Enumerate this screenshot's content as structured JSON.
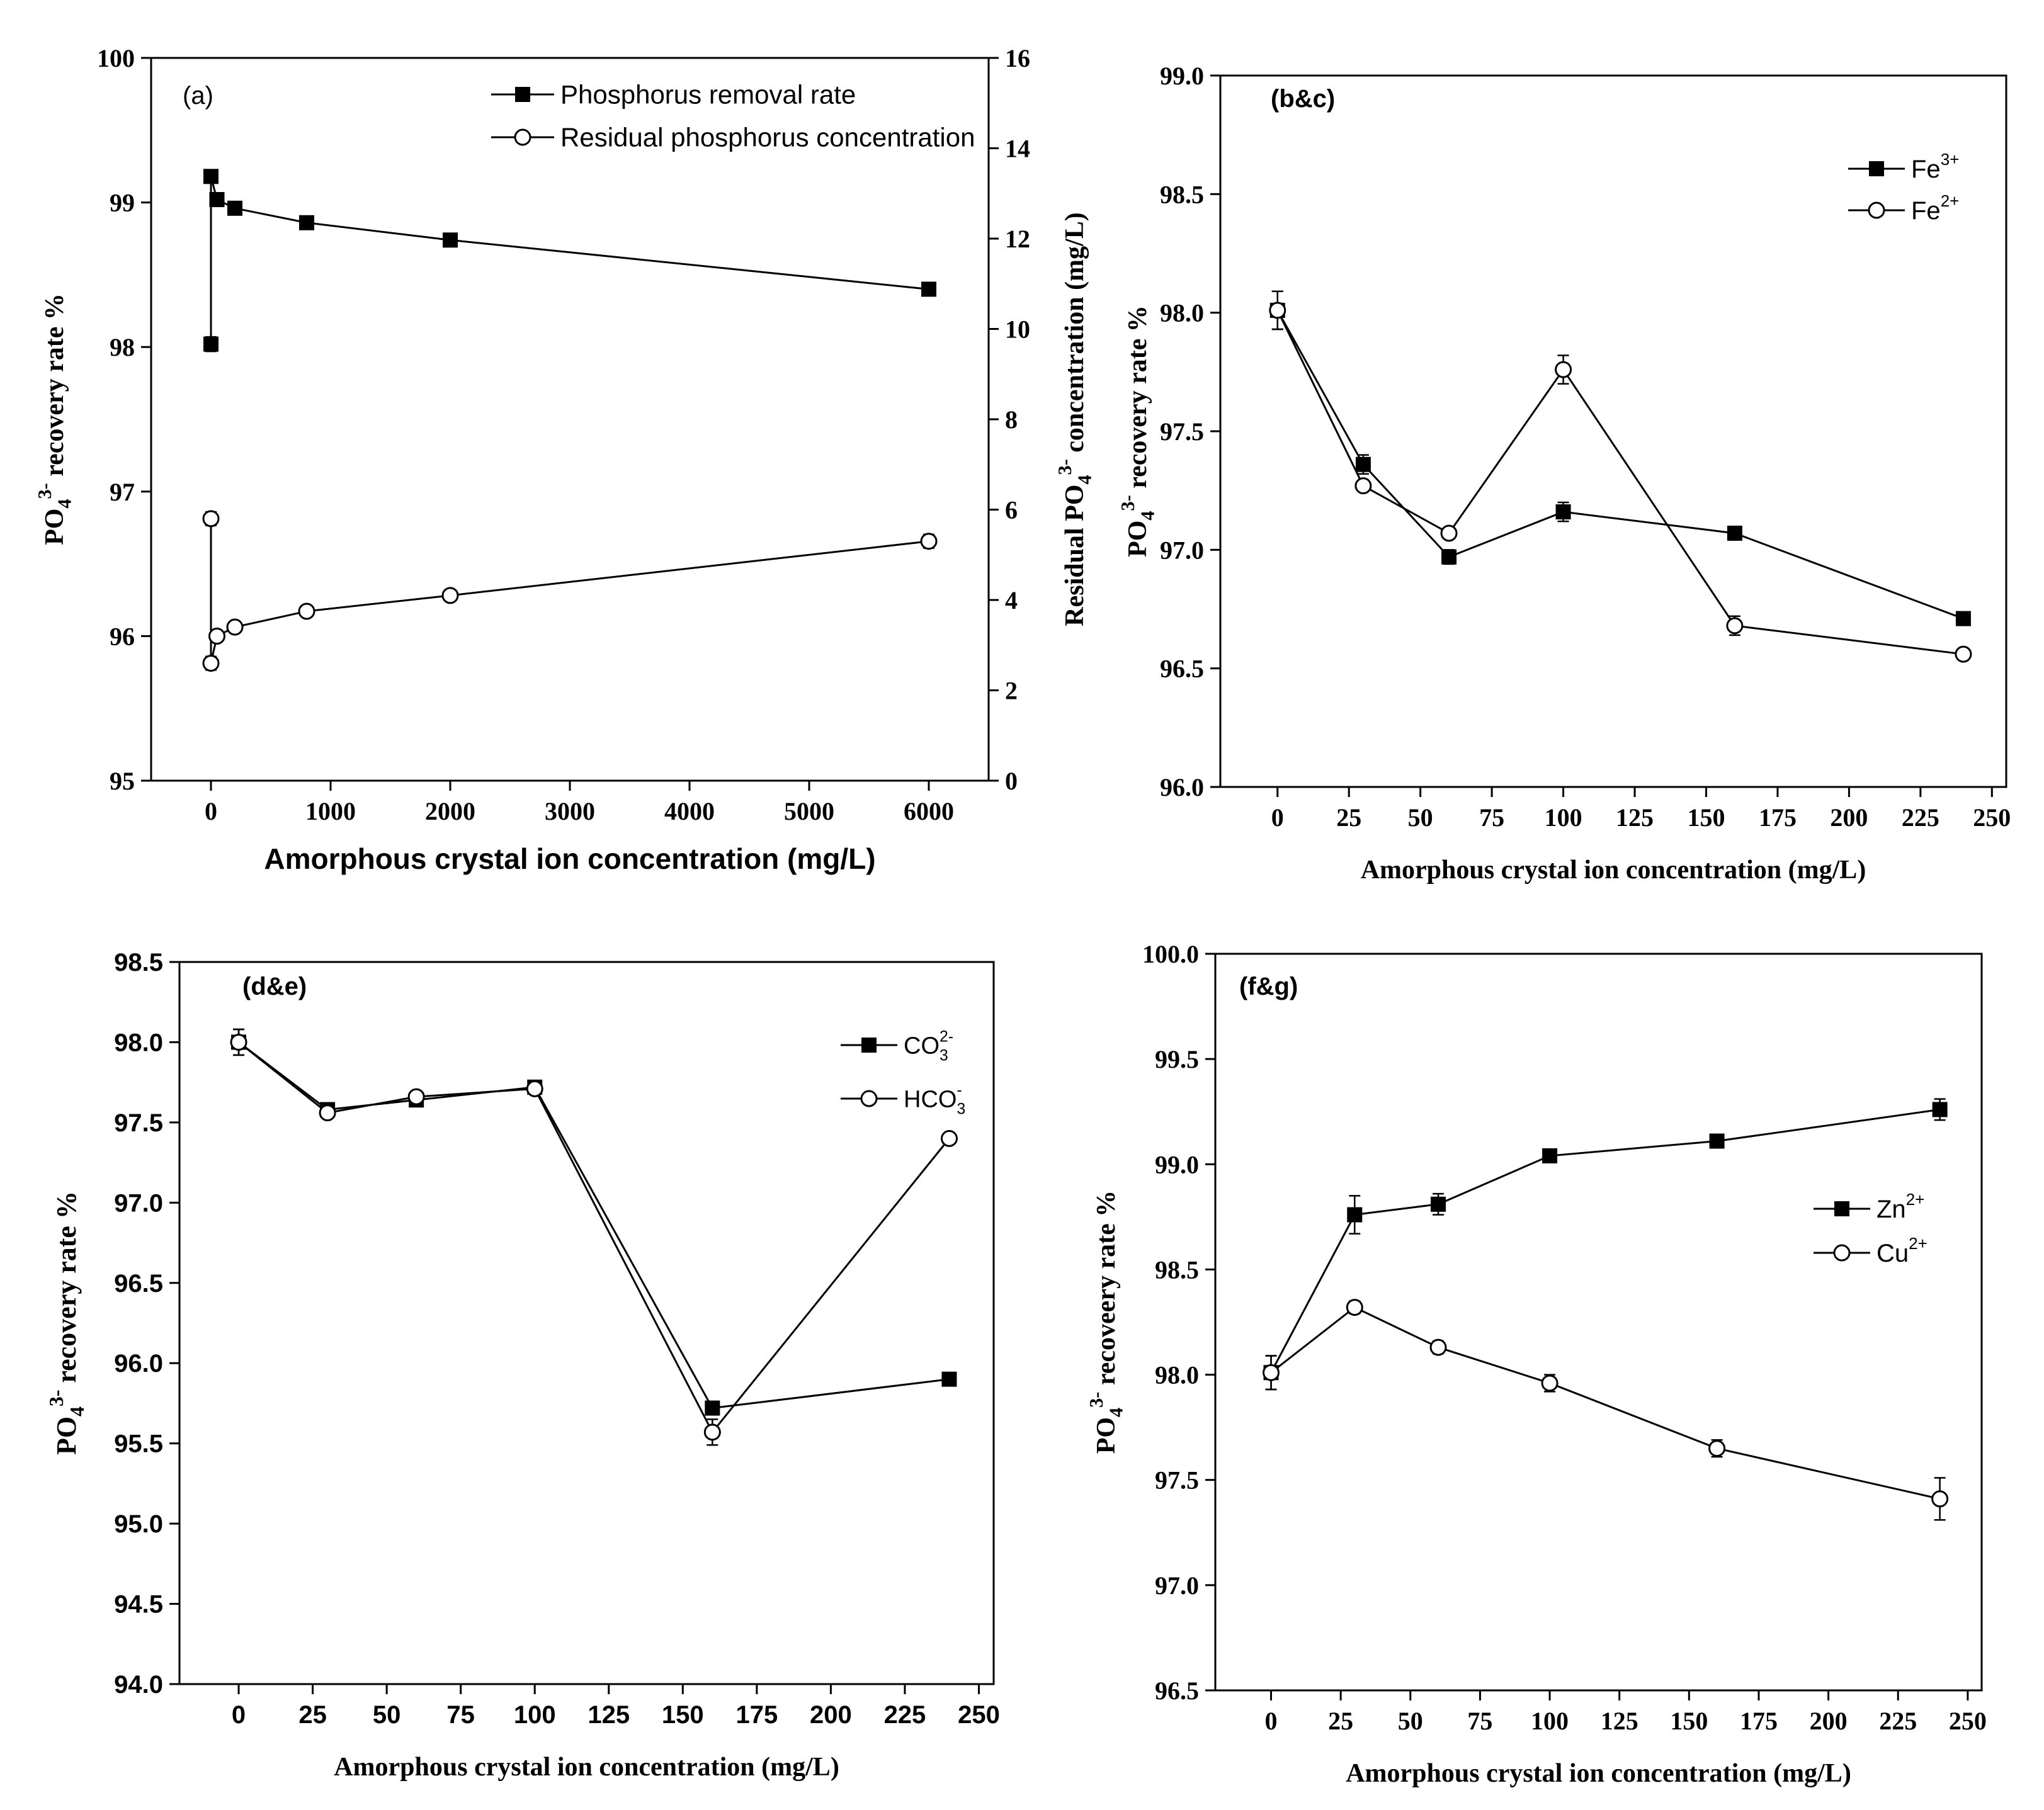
{
  "chart_data": [
    {
      "type": "line",
      "panel_label": "(a)",
      "xlabel": "Amorphous crystal ion concentration (mg/L)",
      "ylabel": "PO4 3- recovery rate %",
      "ylabel_parts": {
        "base": "PO",
        "sub": "4",
        "sup": "3-",
        "rest": " recovery rate %"
      },
      "y2label": "Residual PO4 3- concentration (mg/L)",
      "y2label_parts": {
        "pre": "Residual PO",
        "sub": "4",
        "sup": "3-",
        "rest": " concentration (mg/L)"
      },
      "xlim": [
        -500,
        6500
      ],
      "ylim": [
        95,
        100
      ],
      "y2lim": [
        0,
        16
      ],
      "xticks": [
        0,
        1000,
        2000,
        3000,
        4000,
        5000,
        6000
      ],
      "xtick_labels": [
        "0",
        "1000",
        "2000",
        "3000",
        "4000",
        "5000",
        "6000"
      ],
      "yticks": [
        95,
        96,
        97,
        98,
        99,
        100
      ],
      "ytick_labels": [
        "95",
        "96",
        "97",
        "98",
        "99",
        "100"
      ],
      "y2ticks": [
        0,
        2,
        4,
        6,
        8,
        10,
        12,
        14,
        16
      ],
      "y2tick_labels": [
        "0",
        "2",
        "4",
        "6",
        "8",
        "10",
        "12",
        "14",
        "16"
      ],
      "legend_position": "top-right",
      "series": [
        {
          "name": "Phosphorus removal rate",
          "marker": "square",
          "axis": "left",
          "x": [
            0,
            0,
            50,
            200,
            800,
            2000,
            6000
          ],
          "y": [
            98.02,
            99.18,
            99.02,
            98.96,
            98.86,
            98.74,
            98.4
          ],
          "err": [
            0.05,
            0.02,
            0.02,
            0.02,
            0.02,
            0.02,
            0.04
          ]
        },
        {
          "name": "Residual phosphorus concentration",
          "marker": "circle",
          "axis": "right",
          "x": [
            0,
            0,
            50,
            200,
            800,
            2000,
            6000
          ],
          "y": [
            5.8,
            2.6,
            3.2,
            3.4,
            3.75,
            4.1,
            5.3
          ],
          "err": [
            0.15,
            0.15,
            0.1,
            0.1,
            0.1,
            0.1,
            0.15
          ]
        }
      ]
    },
    {
      "type": "line",
      "panel_label": "(b&c)",
      "xlabel": "Amorphous crystal ion concentration (mg/L)",
      "ylabel": "PO4 3- recovery rate %",
      "ylabel_parts": {
        "base": "PO",
        "sub": "4",
        "sup": "3-",
        "rest": " recovery rate %"
      },
      "xlim": [
        -20,
        255
      ],
      "ylim": [
        96.0,
        99.0
      ],
      "xticks": [
        0,
        25,
        50,
        75,
        100,
        125,
        150,
        175,
        200,
        225,
        250
      ],
      "xtick_labels": [
        "0",
        "25",
        "50",
        "75",
        "100",
        "125",
        "150",
        "175",
        "200",
        "225",
        "250"
      ],
      "yticks": [
        96.0,
        96.5,
        97.0,
        97.5,
        98.0,
        98.5,
        99.0
      ],
      "ytick_labels": [
        "96.0",
        "96.5",
        "97.0",
        "97.5",
        "98.0",
        "98.5",
        "99.0"
      ],
      "legend_position": "top-right",
      "series": [
        {
          "name": "Fe3+",
          "name_base": "Fe",
          "name_sup": "3+",
          "name_sub": "",
          "marker": "square",
          "x": [
            0,
            30,
            60,
            100,
            160,
            240
          ],
          "y": [
            98.01,
            97.36,
            96.97,
            97.16,
            97.07,
            96.71
          ],
          "err": [
            0.08,
            0.04,
            0.03,
            0.04,
            0.02,
            0.02
          ]
        },
        {
          "name": "Fe2+",
          "name_base": "Fe",
          "name_sup": "2+",
          "name_sub": "",
          "marker": "circle",
          "x": [
            0,
            30,
            60,
            100,
            160,
            240
          ],
          "y": [
            98.01,
            97.27,
            97.07,
            97.76,
            96.68,
            96.56
          ],
          "err": [
            0.08,
            0.02,
            0.02,
            0.06,
            0.04,
            0.02
          ]
        }
      ]
    },
    {
      "type": "line",
      "panel_label": "(d&e)",
      "xlabel": "Amorphous crystal ion concentration (mg/L)",
      "ylabel": "PO4 3- recovery rate %",
      "ylabel_parts": {
        "base": "PO",
        "sub": "4",
        "sup": "3-",
        "rest": " recovery rate %"
      },
      "xlim": [
        -20,
        255
      ],
      "ylim": [
        94.0,
        98.5
      ],
      "xticks": [
        0,
        25,
        50,
        75,
        100,
        125,
        150,
        175,
        200,
        225,
        250
      ],
      "xtick_labels": [
        "0",
        "25",
        "50",
        "75",
        "100",
        "125",
        "150",
        "175",
        "200",
        "225",
        "250"
      ],
      "yticks": [
        94.0,
        94.5,
        95.0,
        95.5,
        96.0,
        96.5,
        97.0,
        97.5,
        98.0,
        98.5
      ],
      "ytick_labels": [
        "94.0",
        "94.5",
        "95.0",
        "95.5",
        "96.0",
        "96.5",
        "97.0",
        "97.5",
        "98.0",
        "98.5"
      ],
      "legend_position": "top-right",
      "series": [
        {
          "name": "CO32-",
          "name_base": "CO",
          "name_sup": "2-",
          "name_sub": "3",
          "marker": "square",
          "x": [
            0,
            30,
            60,
            100,
            160,
            240
          ],
          "y": [
            98.0,
            97.58,
            97.64,
            97.72,
            95.72,
            95.9
          ],
          "err": [
            0.08,
            0.03,
            0.03,
            0.03,
            0.04,
            0.02
          ]
        },
        {
          "name": "HCO3-",
          "name_base": "HCO",
          "name_sup": "-",
          "name_sub": "3",
          "marker": "circle",
          "x": [
            0,
            30,
            60,
            100,
            160,
            240
          ],
          "y": [
            98.0,
            97.56,
            97.66,
            97.71,
            95.57,
            97.4
          ],
          "err": [
            0.08,
            0.03,
            0.03,
            0.03,
            0.08,
            0.03
          ]
        }
      ]
    },
    {
      "type": "line",
      "panel_label": "(f&g)",
      "xlabel": "Amorphous crystal ion concentration (mg/L)",
      "ylabel": "PO4 3- recoveery rate %",
      "ylabel_parts": {
        "base": "PO",
        "sub": "4",
        "sup": "3-",
        "rest": " recoveery rate %"
      },
      "xlim": [
        -20,
        255
      ],
      "ylim": [
        96.5,
        100.0
      ],
      "xticks": [
        0,
        25,
        50,
        75,
        100,
        125,
        150,
        175,
        200,
        225,
        250
      ],
      "xtick_labels": [
        "0",
        "25",
        "50",
        "75",
        "100",
        "125",
        "150",
        "175",
        "200",
        "225",
        "250"
      ],
      "yticks": [
        96.5,
        97.0,
        97.5,
        98.0,
        98.5,
        99.0,
        99.5,
        100.0
      ],
      "ytick_labels": [
        "96.5",
        "97.0",
        "97.5",
        "98.0",
        "98.5",
        "99.0",
        "99.5",
        "100.0"
      ],
      "legend_position": "top-right",
      "series": [
        {
          "name": "Zn2+",
          "name_base": "Zn",
          "name_sup": "2+",
          "name_sub": "",
          "marker": "square",
          "x": [
            0,
            30,
            60,
            100,
            160,
            240
          ],
          "y": [
            98.01,
            98.76,
            98.81,
            99.04,
            99.11,
            99.26
          ],
          "err": [
            0.08,
            0.09,
            0.05,
            0.02,
            0.02,
            0.05
          ]
        },
        {
          "name": "Cu2+",
          "name_base": "Cu",
          "name_sup": "2+",
          "name_sub": "",
          "marker": "circle",
          "x": [
            0,
            30,
            60,
            100,
            160,
            240
          ],
          "y": [
            98.01,
            98.32,
            98.13,
            97.96,
            97.65,
            97.41
          ],
          "err": [
            0.08,
            0.03,
            0.03,
            0.04,
            0.04,
            0.1
          ]
        }
      ]
    }
  ]
}
